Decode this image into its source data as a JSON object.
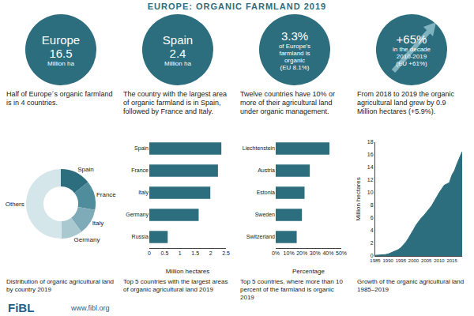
{
  "header": {
    "title": "EUROPE: ORGANIC FARMLAND 2019"
  },
  "panels": [
    {
      "circle_lines": [
        "Europe",
        "16.5",
        "Million ha"
      ],
      "description": "Half of Europe´s organic farmland is in 4 countries.",
      "caption": "Distribution of organic agricultural land by country 2019"
    },
    {
      "circle_lines": [
        "Spain",
        "2.4",
        "Million ha"
      ],
      "description": "The country with the largest area of organic farmland is in Spain, followed by France and Italy.",
      "caption": "Top 5 countries with the largest areas of organic agricultural land 2019"
    },
    {
      "circle_lines": [
        "3.3%",
        "of Europe's",
        "farmland is",
        "organic",
        "(EU 8.1%)"
      ],
      "description": "Twelve countries have 10% or more of their agricultural land under organic management.",
      "caption": "Top 5 countries, where more than 10 percent of the farmland is organic 2019"
    },
    {
      "circle_lines": [
        "+65%",
        "in the decade",
        "2010-2019",
        "(EU +61%)"
      ],
      "description": "From 2018 to 2019 the organic agricultural land grew by 0.9 Million hectares (+5.9%).",
      "caption": "Growth of the organic agricultural land 1985–2019"
    }
  ],
  "footer": {
    "logo": "FiBL",
    "url": "www.fibl.org"
  },
  "chart_data": [
    {
      "type": "pie",
      "categories": [
        "Spain",
        "France",
        "Italy",
        "Germany",
        "Others"
      ],
      "values": [
        2.35,
        2.24,
        1.99,
        1.61,
        8.31
      ],
      "colors": [
        "#2d6e7e",
        "#4f8d9c",
        "#7eabb7",
        "#a9c8d0",
        "#d5e6ea"
      ]
    },
    {
      "type": "bar",
      "orientation": "horizontal",
      "categories": [
        "Spain",
        "France",
        "Italy",
        "Germany",
        "Russia"
      ],
      "values": [
        2.35,
        2.24,
        1.99,
        1.61,
        0.6
      ],
      "color": "#2d6e7e",
      "xlabel": "Million hectares",
      "xlim": [
        0,
        2.5
      ],
      "xticks": [
        0,
        0.5,
        1,
        1.5,
        2,
        2.5
      ],
      "grid": false
    },
    {
      "type": "bar",
      "orientation": "horizontal",
      "categories": [
        "Liechtenstein",
        "Austria",
        "Estonia",
        "Sweden",
        "Switzerland"
      ],
      "values": [
        41,
        26,
        22,
        20,
        16
      ],
      "color": "#2d6e7e",
      "xlabel": "Percentage",
      "xlim": [
        0,
        50
      ],
      "xticks": [
        {
          "value": 0,
          "label": "0%"
        },
        {
          "value": 10,
          "label": "10%"
        },
        {
          "value": 20,
          "label": "20%"
        },
        {
          "value": 30,
          "label": "30%"
        },
        {
          "value": 40,
          "label": "40%"
        },
        {
          "value": 50,
          "label": "50%"
        }
      ],
      "grid": false
    },
    {
      "type": "area",
      "color": "#2d6e7e",
      "ylabel": "Million hectares",
      "x": [
        1985,
        1986,
        1987,
        1988,
        1989,
        1990,
        1991,
        1992,
        1993,
        1994,
        1995,
        1996,
        1997,
        1998,
        1999,
        2000,
        2001,
        2002,
        2003,
        2004,
        2005,
        2006,
        2007,
        2008,
        2009,
        2010,
        2011,
        2012,
        2013,
        2014,
        2015,
        2016,
        2017,
        2018,
        2019
      ],
      "values": [
        0.1,
        0.12,
        0.15,
        0.18,
        0.22,
        0.3,
        0.45,
        0.6,
        0.8,
        1.0,
        1.3,
        1.7,
        2.2,
        2.8,
        3.6,
        4.2,
        4.9,
        5.5,
        6.0,
        6.4,
        6.9,
        7.4,
        7.9,
        8.6,
        9.4,
        10.0,
        10.6,
        11.2,
        11.4,
        11.6,
        12.8,
        13.5,
        14.6,
        15.6,
        16.5
      ],
      "xlim": [
        1985,
        2019
      ],
      "xticks": [
        1985,
        1990,
        1995,
        2000,
        2005,
        2010,
        2015
      ],
      "ylim": [
        0,
        18
      ],
      "yticks": [
        0,
        2,
        4,
        6,
        8,
        10,
        12,
        14,
        16,
        18
      ],
      "grid": false
    }
  ]
}
